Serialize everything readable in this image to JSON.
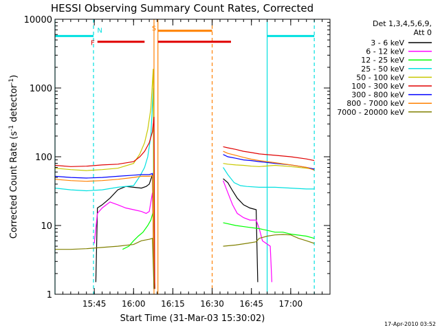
{
  "chart_data": {
    "type": "line",
    "title": "HESSI Observing Summary Count Rates, Corrected",
    "xlabel": "Start Time (31-Mar-03 15:30:02)",
    "ylabel_main": "Corrected Count Rate (s",
    "ylabel_sup1": "-1",
    "ylabel_mid": " detector",
    "ylabel_sup2": "-1",
    "ylabel_end": ")",
    "y_scale": "log",
    "xlim": [
      15.5,
      17.25
    ],
    "ylim": [
      1,
      10000
    ],
    "x_ticks": [
      {
        "x": 15.75,
        "label": "15:45"
      },
      {
        "x": 16.0,
        "label": "16:00"
      },
      {
        "x": 16.25,
        "label": "16:15"
      },
      {
        "x": 16.5,
        "label": "16:30"
      },
      {
        "x": 16.75,
        "label": "16:45"
      },
      {
        "x": 17.0,
        "label": "17:00"
      }
    ],
    "y_ticks": [
      {
        "y": 1,
        "label": "1"
      },
      {
        "y": 10,
        "label": "10"
      },
      {
        "y": 100,
        "label": "100"
      },
      {
        "y": 1000,
        "label": "1000"
      },
      {
        "y": 10000,
        "label": "10000"
      }
    ],
    "legend": {
      "position": "right",
      "heading1": "Det 1,3,4,5,6,9,",
      "heading2": "Att 0",
      "entries": [
        {
          "label": "3 - 6 keV",
          "color": "#000000"
        },
        {
          "label": "6 - 12 keV",
          "color": "#ff00ff"
        },
        {
          "label": "12 - 25 keV",
          "color": "#00ff00"
        },
        {
          "label": "25 - 50 keV",
          "color": "#00e0e0"
        },
        {
          "label": "50 - 100 keV",
          "color": "#c8c800"
        },
        {
          "label": "100 - 300 keV",
          "color": "#e00000"
        },
        {
          "label": "300 - 800 keV",
          "color": "#0000ff"
        },
        {
          "label": "800 - 7000 keV",
          "color": "#ff8000"
        },
        {
          "label": "7000 - 20000 keV",
          "color": "#808000"
        }
      ]
    },
    "series": [
      {
        "name": "3 - 6 keV",
        "color": "#000000",
        "segments": [
          [
            [
              15.76,
              1.5
            ],
            [
              15.77,
              18
            ],
            [
              15.8,
              20
            ],
            [
              15.85,
              25
            ],
            [
              15.9,
              33
            ],
            [
              15.95,
              37
            ],
            [
              16.0,
              36
            ],
            [
              16.05,
              35
            ],
            [
              16.08,
              37
            ],
            [
              16.1,
              40
            ],
            [
              16.12,
              55
            ],
            [
              16.135,
              1.2
            ]
          ],
          [
            [
              16.57,
              48
            ],
            [
              16.6,
              42
            ],
            [
              16.63,
              32
            ],
            [
              16.66,
              25
            ],
            [
              16.7,
              20
            ],
            [
              16.74,
              18
            ],
            [
              16.78,
              17
            ],
            [
              16.79,
              1.5
            ]
          ]
        ]
      },
      {
        "name": "6 - 12 keV",
        "color": "#ff00ff",
        "segments": [
          [
            [
              15.75,
              5.5
            ],
            [
              15.77,
              15
            ],
            [
              15.8,
              18
            ],
            [
              15.85,
              22
            ],
            [
              15.9,
              20
            ],
            [
              15.95,
              18
            ],
            [
              16.0,
              17
            ],
            [
              16.05,
              16
            ],
            [
              16.08,
              15
            ],
            [
              16.1,
              16
            ],
            [
              16.12,
              30
            ],
            [
              16.135,
              1.2
            ]
          ],
          [
            [
              16.57,
              45
            ],
            [
              16.6,
              30
            ],
            [
              16.63,
              20
            ],
            [
              16.66,
              15
            ],
            [
              16.7,
              13
            ],
            [
              16.74,
              12
            ],
            [
              16.78,
              12
            ],
            [
              16.8,
              9
            ],
            [
              16.82,
              6
            ],
            [
              16.87,
              5
            ],
            [
              16.88,
              1.5
            ]
          ]
        ]
      },
      {
        "name": "12 - 25 keV",
        "color": "#00ff00",
        "segments": [
          [
            [
              15.93,
              4.5
            ],
            [
              15.97,
              5
            ],
            [
              16.0,
              6
            ],
            [
              16.03,
              7
            ],
            [
              16.06,
              8
            ],
            [
              16.09,
              10
            ],
            [
              16.11,
              12
            ],
            [
              16.125,
              16
            ],
            [
              16.135,
              1.2
            ]
          ],
          [
            [
              16.57,
              11
            ],
            [
              16.65,
              10
            ],
            [
              16.72,
              9.5
            ],
            [
              16.8,
              9
            ],
            [
              16.85,
              8.5
            ],
            [
              16.9,
              8
            ],
            [
              16.95,
              8
            ],
            [
              17.0,
              7.5
            ],
            [
              17.1,
              7
            ],
            [
              17.15,
              6.5
            ]
          ]
        ]
      },
      {
        "name": "25 - 50 keV",
        "color": "#00e0e0",
        "segments": [
          [
            [
              15.5,
              35
            ],
            [
              15.6,
              33
            ],
            [
              15.7,
              32
            ],
            [
              15.8,
              33
            ],
            [
              15.9,
              36
            ],
            [
              16.0,
              38
            ],
            [
              16.04,
              52
            ],
            [
              16.07,
              70
            ],
            [
              16.09,
              100
            ],
            [
              16.11,
              200
            ],
            [
              16.125,
              1000
            ],
            [
              16.13,
              1.2
            ]
          ],
          [
            [
              16.57,
              70
            ],
            [
              16.6,
              55
            ],
            [
              16.64,
              42
            ],
            [
              16.68,
              38
            ],
            [
              16.72,
              37
            ],
            [
              16.8,
              36
            ],
            [
              16.9,
              36
            ],
            [
              17.0,
              35
            ],
            [
              17.1,
              34
            ],
            [
              17.15,
              34
            ]
          ]
        ]
      },
      {
        "name": "50 - 100 keV",
        "color": "#c8c800",
        "segments": [
          [
            [
              15.5,
              68
            ],
            [
              15.6,
              65
            ],
            [
              15.7,
              63
            ],
            [
              15.8,
              65
            ],
            [
              15.9,
              68
            ],
            [
              16.0,
              80
            ],
            [
              16.04,
              110
            ],
            [
              16.07,
              160
            ],
            [
              16.09,
              250
            ],
            [
              16.11,
              500
            ],
            [
              16.125,
              1900
            ],
            [
              16.13,
              1.2
            ]
          ],
          [
            [
              16.57,
              80
            ],
            [
              16.6,
              78
            ],
            [
              16.65,
              76
            ],
            [
              16.7,
              75
            ],
            [
              16.75,
              73
            ],
            [
              16.8,
              72
            ],
            [
              16.9,
              75
            ],
            [
              17.0,
              72
            ],
            [
              17.1,
              68
            ],
            [
              17.15,
              66
            ]
          ]
        ]
      },
      {
        "name": "100 - 300 keV",
        "color": "#e00000",
        "segments": [
          [
            [
              15.5,
              75
            ],
            [
              15.6,
              72
            ],
            [
              15.7,
              73
            ],
            [
              15.8,
              76
            ],
            [
              15.9,
              78
            ],
            [
              16.0,
              85
            ],
            [
              16.04,
              100
            ],
            [
              16.07,
              120
            ],
            [
              16.1,
              160
            ],
            [
              16.12,
              230
            ],
            [
              16.13,
              380
            ],
            [
              16.135,
              1.2
            ]
          ],
          [
            [
              16.57,
              140
            ],
            [
              16.6,
              135
            ],
            [
              16.65,
              128
            ],
            [
              16.7,
              120
            ],
            [
              16.75,
              115
            ],
            [
              16.8,
              110
            ],
            [
              16.9,
              105
            ],
            [
              17.0,
              100
            ],
            [
              17.1,
              93
            ],
            [
              17.15,
              88
            ]
          ]
        ]
      },
      {
        "name": "300 - 800 keV",
        "color": "#0000ff",
        "segments": [
          [
            [
              15.5,
              52
            ],
            [
              15.6,
              50
            ],
            [
              15.7,
              49
            ],
            [
              15.8,
              50
            ],
            [
              15.9,
              52
            ],
            [
              16.0,
              54
            ],
            [
              16.05,
              55
            ],
            [
              16.1,
              55
            ],
            [
              16.12,
              57
            ],
            [
              16.13,
              1.2
            ]
          ],
          [
            [
              16.57,
              108
            ],
            [
              16.6,
              100
            ],
            [
              16.65,
              95
            ],
            [
              16.7,
              90
            ],
            [
              16.75,
              88
            ],
            [
              16.8,
              85
            ],
            [
              16.9,
              80
            ],
            [
              17.0,
              76
            ],
            [
              17.1,
              70
            ],
            [
              17.15,
              66
            ]
          ]
        ]
      },
      {
        "name": "800 - 7000 keV",
        "color": "#ff8000",
        "segments": [
          [
            [
              15.5,
              47
            ],
            [
              15.6,
              45
            ],
            [
              15.7,
              44
            ],
            [
              15.8,
              45
            ],
            [
              15.9,
              47
            ],
            [
              16.0,
              50
            ],
            [
              16.05,
              52
            ],
            [
              16.1,
              52
            ],
            [
              16.12,
              53
            ],
            [
              16.13,
              1.2
            ]
          ],
          [
            [
              16.57,
              120
            ],
            [
              16.6,
              112
            ],
            [
              16.65,
              105
            ],
            [
              16.7,
              98
            ],
            [
              16.75,
              92
            ],
            [
              16.8,
              88
            ],
            [
              16.9,
              82
            ],
            [
              17.0,
              76
            ],
            [
              17.1,
              70
            ],
            [
              17.15,
              64
            ]
          ]
        ]
      },
      {
        "name": "7000 - 20000 keV",
        "color": "#808000",
        "segments": [
          [
            [
              15.5,
              4.5
            ],
            [
              15.6,
              4.5
            ],
            [
              15.7,
              4.6
            ],
            [
              15.8,
              4.8
            ],
            [
              15.9,
              5
            ],
            [
              16.0,
              5.3
            ],
            [
              16.05,
              6
            ],
            [
              16.1,
              6.3
            ],
            [
              16.12,
              6.5
            ],
            [
              16.13,
              1.2
            ]
          ],
          [
            [
              16.57,
              5
            ],
            [
              16.65,
              5.2
            ],
            [
              16.72,
              5.5
            ],
            [
              16.78,
              5.8
            ],
            [
              16.8,
              6.5
            ],
            [
              16.85,
              7
            ],
            [
              16.9,
              7.3
            ],
            [
              16.95,
              7.4
            ],
            [
              17.0,
              7.3
            ],
            [
              17.05,
              6.5
            ],
            [
              17.1,
              6
            ],
            [
              17.15,
              5.5
            ]
          ]
        ]
      }
    ],
    "flag_bars": [
      {
        "label": "N",
        "color": "#00e0e0",
        "y": 5700,
        "label_x": 15.785,
        "label_y": 7000,
        "segments": [
          [
            15.5,
            15.745
          ],
          [
            16.85,
            17.15
          ]
        ]
      },
      {
        "label": "F",
        "color": "#e00000",
        "y": 4700,
        "label_x": 15.74,
        "label_y": 4600,
        "segments": [
          [
            15.77,
            16.07
          ],
          [
            16.155,
            16.62
          ]
        ]
      },
      {
        "label": "S",
        "color": "#ff8000",
        "y": 6800,
        "label_x": 16.13,
        "label_y": 7500,
        "segments": [
          [
            16.155,
            16.5
          ]
        ]
      }
    ],
    "vertical_lines": [
      {
        "x": 15.5,
        "color": "#00e0e0",
        "style": "solid"
      },
      {
        "x": 15.745,
        "color": "#00e0e0",
        "style": "dashed"
      },
      {
        "x": 16.85,
        "color": "#00e0e0",
        "style": "solid"
      },
      {
        "x": 17.15,
        "color": "#00e0e0",
        "style": "dashed"
      },
      {
        "x": 16.13,
        "color": "#ff8000",
        "style": "solid"
      },
      {
        "x": 16.155,
        "color": "#ff8000",
        "style": "solid"
      },
      {
        "x": 16.5,
        "color": "#ff8000",
        "style": "dashed"
      }
    ],
    "timestamp": "17-Apr-2010 03:52"
  }
}
